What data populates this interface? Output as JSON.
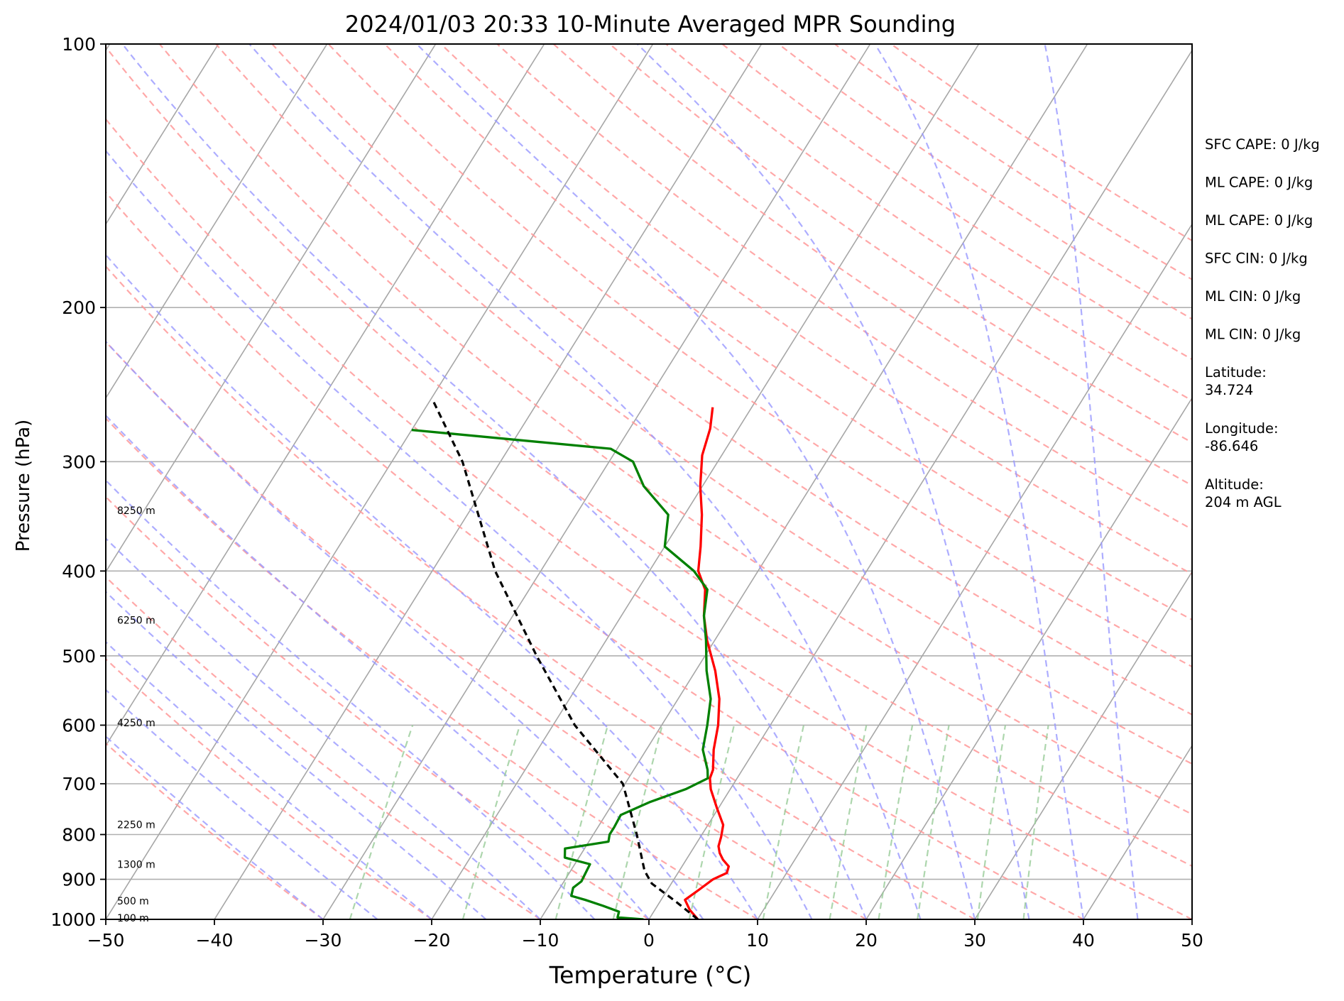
{
  "chart_data": {
    "type": "line",
    "title": "2024/01/03 20:33 10-Minute Averaged MPR Sounding",
    "xlabel": "Temperature (°C)",
    "ylabel": "Pressure (hPa)",
    "xlim": [
      -50,
      50
    ],
    "ylim": [
      1000,
      100
    ],
    "y_scale": "log",
    "x_ticks": [
      "−50",
      "−40",
      "−30",
      "−20",
      "−10",
      "0",
      "10",
      "20",
      "30",
      "40",
      "50"
    ],
    "y_ticks": [
      "100",
      "200",
      "300",
      "400",
      "500",
      "600",
      "700",
      "800",
      "900",
      "1000"
    ],
    "grid": true,
    "colors": {
      "temperature": "#ff0000",
      "dewpoint": "#008000",
      "parcel": "#000000",
      "isotherm": "#a6a6a6",
      "dry_adiabat": "#ff9999",
      "moist_adiabat": "#9999ff",
      "mixing_ratio": "#99cc99"
    },
    "series": [
      {
        "key": "temperature",
        "points": [
          [
            1000,
            4.5
          ],
          [
            975,
            3.2
          ],
          [
            950,
            2.2
          ],
          [
            925,
            2.9
          ],
          [
            900,
            3.6
          ],
          [
            885,
            4.5
          ],
          [
            870,
            4.3
          ],
          [
            855,
            3.4
          ],
          [
            840,
            2.7
          ],
          [
            825,
            2.2
          ],
          [
            805,
            1.9
          ],
          [
            780,
            1.4
          ],
          [
            745,
            -0.2
          ],
          [
            710,
            -1.8
          ],
          [
            690,
            -2.5
          ],
          [
            675,
            -2.7
          ],
          [
            640,
            -3.8
          ],
          [
            600,
            -4.8
          ],
          [
            560,
            -6.2
          ],
          [
            520,
            -8.2
          ],
          [
            480,
            -10.7
          ],
          [
            450,
            -12.4
          ],
          [
            420,
            -13.8
          ],
          [
            400,
            -15.5
          ],
          [
            375,
            -16.7
          ],
          [
            345,
            -18.4
          ],
          [
            320,
            -20.2
          ],
          [
            295,
            -21.8
          ],
          [
            275,
            -22.6
          ],
          [
            260,
            -23.6
          ]
        ]
      },
      {
        "key": "dewpoint",
        "points": [
          [
            1000,
            -0.5
          ],
          [
            995,
            -3.0
          ],
          [
            980,
            -3.2
          ],
          [
            965,
            -5.0
          ],
          [
            950,
            -7.0
          ],
          [
            940,
            -8.5
          ],
          [
            920,
            -8.8
          ],
          [
            905,
            -8.4
          ],
          [
            885,
            -8.5
          ],
          [
            865,
            -8.6
          ],
          [
            850,
            -11.3
          ],
          [
            830,
            -11.8
          ],
          [
            815,
            -8.2
          ],
          [
            800,
            -8.5
          ],
          [
            785,
            -8.5
          ],
          [
            760,
            -8.6
          ],
          [
            735,
            -6.7
          ],
          [
            710,
            -4.1
          ],
          [
            690,
            -2.7
          ],
          [
            675,
            -3.2
          ],
          [
            640,
            -4.8
          ],
          [
            600,
            -5.8
          ],
          [
            560,
            -7.0
          ],
          [
            520,
            -9.0
          ],
          [
            480,
            -10.8
          ],
          [
            450,
            -12.4
          ],
          [
            420,
            -13.6
          ],
          [
            400,
            -15.9
          ],
          [
            375,
            -20.0
          ],
          [
            345,
            -21.5
          ],
          [
            320,
            -25.4
          ],
          [
            300,
            -27.8
          ],
          [
            290,
            -30.6
          ],
          [
            276,
            -50.0
          ]
        ]
      },
      {
        "key": "parcel",
        "points": [
          [
            1000,
            4.5
          ],
          [
            955,
            1.5
          ],
          [
            910,
            -1.8
          ],
          [
            880,
            -3.2
          ],
          [
            800,
            -6.0
          ],
          [
            700,
            -10.2
          ],
          [
            600,
            -18.0
          ],
          [
            500,
            -25.5
          ],
          [
            400,
            -34.2
          ],
          [
            300,
            -43.5
          ],
          [
            255,
            -49.8
          ]
        ]
      }
    ],
    "height_labels": [
      "100 m",
      "500 m",
      "1300 m",
      "2250 m",
      "4250 m",
      "6250 m",
      "8250 m"
    ],
    "height_label_pressures": [
      996,
      953,
      865,
      779,
      596,
      455,
      341
    ],
    "annotations": [
      {
        "label": "SFC CAPE: 0 J/kg"
      },
      {
        "label": "ML CAPE: 0 J/kg"
      },
      {
        "label": "ML CAPE: 0 J/kg"
      },
      {
        "label": "SFC CIN: 0 J/kg"
      },
      {
        "label": "ML CIN: 0 J/kg"
      },
      {
        "label": "ML CIN: 0 J/kg"
      },
      {
        "label": "Latitude:",
        "value": "34.724"
      },
      {
        "label": "Longitude:",
        "value": "-86.646"
      },
      {
        "label": "Altitude:",
        "value": "204 m AGL"
      }
    ]
  }
}
